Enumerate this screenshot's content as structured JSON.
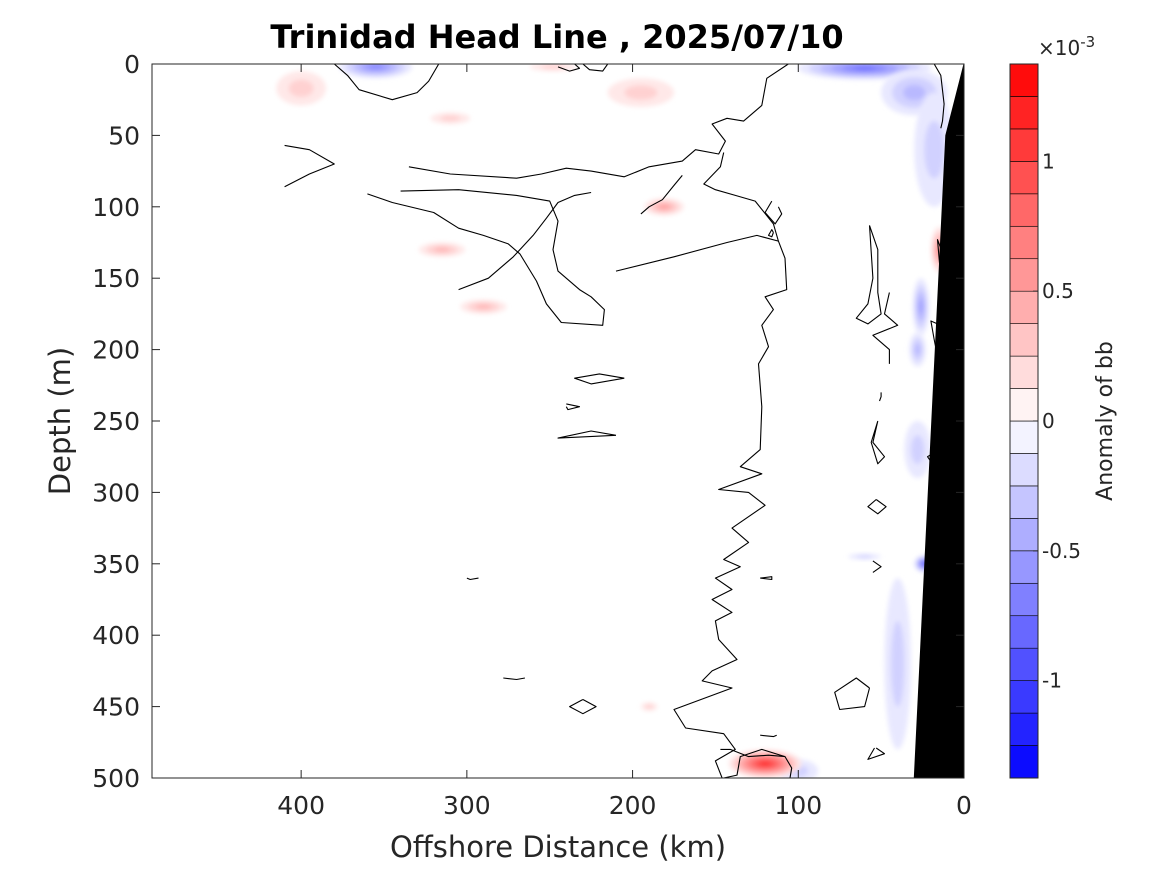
{
  "chart_data": {
    "type": "heatmap",
    "subtype": "filled-contour-section",
    "title": "Trinidad Head Line , 2025/07/10",
    "xlabel": "Offshore Distance (km)",
    "ylabel": "Depth (m)",
    "x_axis_reversed": true,
    "y_axis_reversed": true,
    "xlim": [
      0,
      490
    ],
    "ylim": [
      0,
      500
    ],
    "xticks": [
      0,
      100,
      200,
      300,
      400
    ],
    "xtick_labels": [
      "0",
      "100",
      "200",
      "300",
      "400"
    ],
    "yticks": [
      0,
      50,
      100,
      150,
      200,
      250,
      300,
      350,
      400,
      450,
      500
    ],
    "ytick_labels": [
      "0",
      "50",
      "100",
      "150",
      "200",
      "250",
      "300",
      "350",
      "400",
      "450",
      "500"
    ],
    "colorbar": {
      "label": "Anomaly of bb",
      "exponent_base": "×10",
      "exponent_power": "-3",
      "range": [
        -1.375,
        1.375
      ],
      "level_step": 0.125,
      "ticks": [
        -1,
        -0.5,
        0,
        0.5,
        1
      ],
      "tick_labels": [
        "-1",
        "-0.5",
        "0",
        "0.5",
        "1"
      ],
      "colormap": "blue-white-red",
      "neg_color": "#0000ff",
      "pos_color": "#ff0000",
      "mid_color": "#ffffff"
    },
    "zero_contour_color": "#000000",
    "bathymetry_color": "#000000",
    "bathymetry": [
      [
        0,
        0
      ],
      [
        0,
        500
      ],
      [
        30,
        500
      ],
      [
        11,
        50
      ],
      [
        0,
        0
      ]
    ],
    "anomalies": [
      {
        "x": 355,
        "depth": 2,
        "value": -0.6,
        "rx": 22,
        "ry": 8
      },
      {
        "x": 60,
        "depth": 3,
        "value": -0.8,
        "rx": 40,
        "ry": 8
      },
      {
        "x": 30,
        "depth": 20,
        "value": -0.4,
        "rx": 20,
        "ry": 16
      },
      {
        "x": 18,
        "depth": 60,
        "value": -0.3,
        "rx": 12,
        "ry": 40
      },
      {
        "x": 26,
        "depth": 170,
        "value": -0.5,
        "rx": 5,
        "ry": 20
      },
      {
        "x": 28,
        "depth": 200,
        "value": -0.4,
        "rx": 5,
        "ry": 12
      },
      {
        "x": 28,
        "depth": 270,
        "value": -0.3,
        "rx": 8,
        "ry": 20
      },
      {
        "x": 24,
        "depth": 350,
        "value": -0.9,
        "rx": 6,
        "ry": 6
      },
      {
        "x": 60,
        "depth": 345,
        "value": -0.3,
        "rx": 10,
        "ry": 2
      },
      {
        "x": 40,
        "depth": 420,
        "value": -0.3,
        "rx": 8,
        "ry": 60
      },
      {
        "x": 100,
        "depth": 495,
        "value": -0.3,
        "rx": 12,
        "ry": 8
      },
      {
        "x": 400,
        "depth": 17,
        "value": 0.3,
        "rx": 15,
        "ry": 12
      },
      {
        "x": 195,
        "depth": 20,
        "value": 0.2,
        "rx": 20,
        "ry": 10
      },
      {
        "x": 248,
        "depth": 2,
        "value": 0.3,
        "rx": 14,
        "ry": 3
      },
      {
        "x": 310,
        "depth": 38,
        "value": 0.2,
        "rx": 12,
        "ry": 4
      },
      {
        "x": 181,
        "depth": 100,
        "value": 0.5,
        "rx": 12,
        "ry": 6
      },
      {
        "x": 315,
        "depth": 130,
        "value": 0.4,
        "rx": 14,
        "ry": 5
      },
      {
        "x": 290,
        "depth": 170,
        "value": 0.4,
        "rx": 14,
        "ry": 5
      },
      {
        "x": 15,
        "depth": 130,
        "value": 0.6,
        "rx": 5,
        "ry": 16
      },
      {
        "x": 190,
        "depth": 450,
        "value": 0.3,
        "rx": 5,
        "ry": 3
      },
      {
        "x": 120,
        "depth": 490,
        "value": 1.1,
        "rx": 22,
        "ry": 10
      }
    ],
    "zero_contours": [
      [
        [
          380,
          0
        ],
        [
          372,
          8
        ],
        [
          365,
          18
        ],
        [
          345,
          25
        ],
        [
          330,
          20
        ],
        [
          323,
          12
        ],
        [
          317,
          0
        ]
      ],
      [
        [
          245,
          2
        ],
        [
          238,
          5
        ],
        [
          232,
          3
        ],
        [
          235,
          0
        ]
      ],
      [
        [
          230,
          0
        ],
        [
          226,
          4
        ],
        [
          218,
          5
        ],
        [
          215,
          0
        ]
      ],
      [
        [
          410,
          57
        ],
        [
          395,
          60
        ],
        [
          380,
          70
        ],
        [
          395,
          77
        ],
        [
          410,
          86
        ]
      ],
      [
        [
          335,
          72
        ],
        [
          310,
          77
        ],
        [
          270,
          80
        ],
        [
          255,
          77
        ],
        [
          240,
          73
        ],
        [
          225,
          75
        ],
        [
          205,
          79
        ],
        [
          190,
          72
        ],
        [
          170,
          68
        ],
        [
          162,
          60
        ],
        [
          148,
          63
        ],
        [
          144,
          54
        ],
        [
          152,
          42
        ],
        [
          143,
          38
        ],
        [
          133,
          40
        ],
        [
          122,
          29
        ],
        [
          119,
          10
        ],
        [
          106,
          0
        ]
      ],
      [
        [
          340,
          89
        ],
        [
          305,
          88
        ],
        [
          270,
          92
        ],
        [
          250,
          96
        ],
        [
          245,
          110
        ],
        [
          248,
          130
        ],
        [
          245,
          145
        ],
        [
          232,
          158
        ],
        [
          225,
          163
        ],
        [
          217,
          172
        ],
        [
          218,
          183
        ],
        [
          243,
          181
        ],
        [
          252,
          168
        ],
        [
          258,
          152
        ],
        [
          268,
          133
        ],
        [
          275,
          126
        ],
        [
          290,
          120
        ],
        [
          305,
          115
        ],
        [
          320,
          104
        ],
        [
          345,
          97
        ],
        [
          360,
          91
        ]
      ],
      [
        [
          305,
          158
        ],
        [
          287,
          150
        ],
        [
          272,
          135
        ],
        [
          260,
          120
        ],
        [
          252,
          108
        ],
        [
          245,
          97
        ],
        [
          235,
          92
        ],
        [
          225,
          90
        ]
      ],
      [
        [
          170,
          78
        ],
        [
          175,
          85
        ],
        [
          182,
          95
        ],
        [
          190,
          100
        ],
        [
          195,
          105
        ]
      ],
      [
        [
          145,
          62
        ],
        [
          147,
          72
        ],
        [
          157,
          84
        ],
        [
          150,
          88
        ],
        [
          138,
          92
        ],
        [
          126,
          96
        ],
        [
          115,
          112
        ],
        [
          112,
          124
        ],
        [
          108,
          136
        ],
        [
          107,
          158
        ],
        [
          120,
          163
        ],
        [
          115,
          172
        ],
        [
          122,
          183
        ],
        [
          118,
          198
        ],
        [
          124,
          210
        ],
        [
          122,
          240
        ],
        [
          123,
          270
        ],
        [
          135,
          282
        ],
        [
          122,
          287
        ],
        [
          148,
          298
        ],
        [
          130,
          300
        ],
        [
          120,
          309
        ],
        [
          140,
          325
        ],
        [
          130,
          335
        ],
        [
          145,
          347
        ],
        [
          135,
          352
        ],
        [
          150,
          360
        ],
        [
          140,
          368
        ],
        [
          152,
          375
        ],
        [
          140,
          384
        ],
        [
          150,
          390
        ],
        [
          148,
          403
        ],
        [
          137,
          417
        ],
        [
          152,
          425
        ],
        [
          158,
          432
        ],
        [
          140,
          437
        ],
        [
          175,
          452
        ],
        [
          168,
          465
        ],
        [
          145,
          469
        ],
        [
          138,
          480
        ],
        [
          150,
          488
        ],
        [
          146,
          500
        ]
      ],
      [
        [
          112,
          124
        ],
        [
          125,
          120
        ],
        [
          143,
          125
        ],
        [
          175,
          135
        ],
        [
          210,
          145
        ]
      ],
      [
        [
          112,
          100
        ],
        [
          110,
          105
        ],
        [
          114,
          112
        ],
        [
          120,
          104
        ],
        [
          116,
          96
        ]
      ],
      [
        [
          115,
          118
        ],
        [
          116,
          121
        ],
        [
          118,
          120
        ],
        [
          116,
          116
        ],
        [
          115,
          118
        ]
      ],
      [
        [
          240,
          240
        ],
        [
          239,
          242
        ],
        [
          232,
          240
        ],
        [
          240,
          238
        ]
      ],
      [
        [
          205,
          220
        ],
        [
          225,
          224
        ],
        [
          235,
          220
        ],
        [
          220,
          217
        ],
        [
          205,
          220
        ]
      ],
      [
        [
          210,
          260
        ],
        [
          245,
          262
        ],
        [
          225,
          257
        ],
        [
          210,
          260
        ]
      ],
      [
        [
          300,
          360
        ],
        [
          298,
          361
        ],
        [
          293,
          360
        ]
      ],
      [
        [
          123,
          360
        ],
        [
          116,
          361
        ],
        [
          116,
          359
        ],
        [
          123,
          360
        ]
      ],
      [
        [
          278,
          430
        ],
        [
          270,
          431
        ],
        [
          265,
          430
        ]
      ],
      [
        [
          230,
          445
        ],
        [
          222,
          450
        ],
        [
          230,
          455
        ],
        [
          238,
          450
        ],
        [
          230,
          445
        ]
      ],
      [
        [
          147,
          480
        ],
        [
          141,
          480
        ],
        [
          130,
          485
        ],
        [
          118,
          484
        ],
        [
          108,
          485
        ],
        [
          104,
          493
        ],
        [
          105,
          500
        ]
      ],
      [
        [
          145,
          500
        ],
        [
          137,
          498
        ],
        [
          135,
          485
        ],
        [
          122,
          480
        ],
        [
          108,
          485
        ]
      ],
      [
        [
          123,
          470
        ],
        [
          115,
          471
        ],
        [
          113,
          470
        ]
      ],
      [
        [
          57,
          113
        ],
        [
          52,
          130
        ],
        [
          52,
          160
        ],
        [
          50,
          175
        ],
        [
          58,
          182
        ],
        [
          65,
          178
        ],
        [
          58,
          168
        ],
        [
          55,
          150
        ],
        [
          57,
          113
        ]
      ],
      [
        [
          45,
          160
        ],
        [
          48,
          175
        ],
        [
          40,
          183
        ],
        [
          55,
          190
        ],
        [
          45,
          200
        ],
        [
          45,
          207
        ],
        [
          45,
          210
        ]
      ],
      [
        [
          52,
          250
        ],
        [
          55,
          265
        ],
        [
          48,
          275
        ],
        [
          52,
          280
        ],
        [
          56,
          265
        ],
        [
          52,
          250
        ]
      ],
      [
        [
          53,
          305
        ],
        [
          47,
          310
        ],
        [
          52,
          315
        ],
        [
          58,
          310
        ],
        [
          53,
          305
        ]
      ],
      [
        [
          55,
          348
        ],
        [
          50,
          352
        ],
        [
          55,
          356
        ]
      ],
      [
        [
          57,
          437
        ],
        [
          60,
          450
        ],
        [
          75,
          452
        ],
        [
          78,
          440
        ],
        [
          65,
          430
        ],
        [
          57,
          437
        ]
      ],
      [
        [
          53,
          479
        ],
        [
          48,
          483
        ],
        [
          58,
          487
        ],
        [
          54,
          479
        ]
      ],
      [
        [
          18,
          0
        ],
        [
          14,
          8
        ],
        [
          12,
          28
        ],
        [
          13,
          40
        ],
        [
          14,
          45
        ]
      ],
      [
        [
          12,
          135
        ],
        [
          16,
          123
        ],
        [
          14,
          150
        ],
        [
          11,
          165
        ]
      ],
      [
        [
          8,
          186
        ],
        [
          20,
          180
        ],
        [
          18,
          193
        ],
        [
          16,
          205
        ]
      ],
      [
        [
          15,
          270
        ],
        [
          22,
          275
        ],
        [
          13,
          290
        ],
        [
          16,
          296
        ],
        [
          14,
          305
        ]
      ],
      [
        [
          50,
          230
        ],
        [
          50,
          233
        ],
        [
          51,
          236
        ]
      ]
    ]
  }
}
